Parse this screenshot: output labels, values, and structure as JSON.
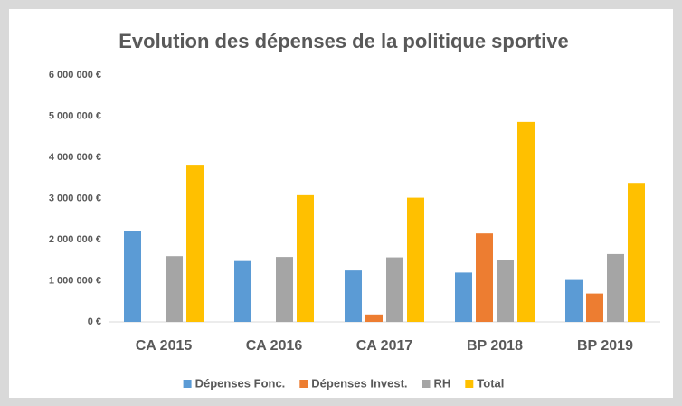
{
  "chart_data": {
    "type": "bar",
    "title": "Evolution des dépenses de la politique sportive",
    "categories": [
      "CA 2015",
      "CA 2016",
      "CA 2017",
      "BP 2018",
      "BP 2019"
    ],
    "series": [
      {
        "name": "Dépenses Fonc.",
        "color": "#5b9bd5",
        "values": [
          2200000,
          1480000,
          1250000,
          1200000,
          1020000
        ]
      },
      {
        "name": "Dépenses Invest.",
        "color": "#ed7d31",
        "values": [
          0,
          0,
          180000,
          2150000,
          690000
        ]
      },
      {
        "name": "RH",
        "color": "#a5a5a5",
        "values": [
          1600000,
          1580000,
          1570000,
          1500000,
          1650000
        ]
      },
      {
        "name": "Total",
        "color": "#ffc000",
        "values": [
          3800000,
          3080000,
          3020000,
          4860000,
          3380000
        ]
      }
    ],
    "ylim": [
      0,
      6000000
    ],
    "yticks": [
      {
        "value": 0,
        "label": "0 €"
      },
      {
        "value": 1000000,
        "label": "1 000 000 €"
      },
      {
        "value": 2000000,
        "label": "2 000 000 €"
      },
      {
        "value": 3000000,
        "label": "3 000 000 €"
      },
      {
        "value": 4000000,
        "label": "4 000 000 €"
      },
      {
        "value": 5000000,
        "label": "5 000 000 €"
      },
      {
        "value": 6000000,
        "label": "6 000 000 €"
      }
    ],
    "grid": false,
    "legend": "bottom"
  }
}
